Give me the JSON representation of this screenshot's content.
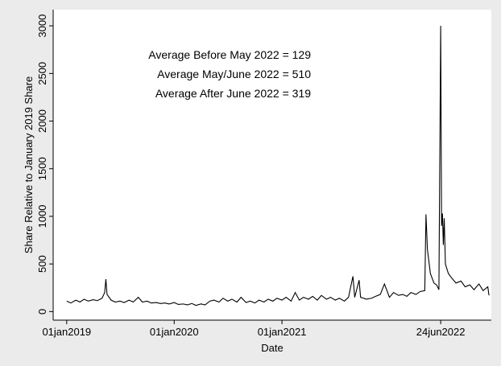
{
  "chart_data": {
    "type": "line",
    "xlabel": "Date",
    "ylabel": "Share Relative to January 2019 Share",
    "annotations": [
      "Average Before May 2022 = 129",
      "Average May/June 2022 = 510",
      "Average After June 2022 = 319"
    ],
    "xlim": [
      "2018-11-16",
      "2022-12-13"
    ],
    "xticks": [
      {
        "value": "2019-01-01",
        "label": "01jan2019"
      },
      {
        "value": "2020-01-01",
        "label": "01jan2020"
      },
      {
        "value": "2021-01-01",
        "label": "01jan2021"
      },
      {
        "value": "2022-06-24",
        "label": "24jun2022"
      }
    ],
    "ylim": [
      -90,
      3170
    ],
    "yticks": [
      0,
      500,
      1000,
      1500,
      2000,
      2500,
      3000
    ],
    "x": [
      "2019-01-01",
      "2019-01-15",
      "2019-02-01",
      "2019-02-15",
      "2019-03-01",
      "2019-03-15",
      "2019-04-01",
      "2019-04-15",
      "2019-05-01",
      "2019-05-10",
      "2019-05-14",
      "2019-05-18",
      "2019-06-01",
      "2019-06-15",
      "2019-07-01",
      "2019-07-15",
      "2019-08-01",
      "2019-08-15",
      "2019-09-01",
      "2019-09-15",
      "2019-10-01",
      "2019-10-15",
      "2019-11-01",
      "2019-11-15",
      "2019-12-01",
      "2019-12-15",
      "2020-01-01",
      "2020-01-15",
      "2020-02-01",
      "2020-02-15",
      "2020-03-01",
      "2020-03-15",
      "2020-04-01",
      "2020-04-15",
      "2020-05-01",
      "2020-05-15",
      "2020-06-01",
      "2020-06-15",
      "2020-07-01",
      "2020-07-15",
      "2020-08-01",
      "2020-08-15",
      "2020-09-01",
      "2020-09-15",
      "2020-10-01",
      "2020-10-15",
      "2020-11-01",
      "2020-11-15",
      "2020-12-01",
      "2020-12-15",
      "2021-01-01",
      "2021-01-15",
      "2021-02-01",
      "2021-02-15",
      "2021-03-01",
      "2021-03-15",
      "2021-04-01",
      "2021-04-15",
      "2021-05-01",
      "2021-05-15",
      "2021-06-01",
      "2021-06-15",
      "2021-07-01",
      "2021-07-15",
      "2021-08-01",
      "2021-08-15",
      "2021-08-30",
      "2021-09-05",
      "2021-09-20",
      "2021-09-25",
      "2021-10-15",
      "2021-11-01",
      "2021-11-15",
      "2021-12-01",
      "2021-12-15",
      "2022-01-01",
      "2022-01-15",
      "2022-02-01",
      "2022-02-15",
      "2022-03-01",
      "2022-03-15",
      "2022-04-01",
      "2022-04-15",
      "2022-05-01",
      "2022-05-05",
      "2022-05-10",
      "2022-05-20",
      "2022-06-01",
      "2022-06-10",
      "2022-06-18",
      "2022-06-24",
      "2022-06-27",
      "2022-06-30",
      "2022-07-03",
      "2022-07-06",
      "2022-07-10",
      "2022-07-20",
      "2022-08-01",
      "2022-08-15",
      "2022-09-01",
      "2022-09-15",
      "2022-10-01",
      "2022-10-15",
      "2022-11-01",
      "2022-11-15",
      "2022-12-01",
      "2022-12-05"
    ],
    "series": [
      {
        "color": "#000000",
        "values": [
          110,
          90,
          120,
          100,
          130,
          110,
          125,
          115,
          140,
          200,
          340,
          180,
          120,
          100,
          110,
          95,
          120,
          100,
          150,
          100,
          110,
          90,
          95,
          85,
          90,
          80,
          95,
          75,
          80,
          70,
          85,
          65,
          80,
          70,
          110,
          120,
          100,
          140,
          110,
          130,
          100,
          150,
          95,
          110,
          90,
          120,
          100,
          130,
          110,
          140,
          120,
          150,
          110,
          200,
          120,
          150,
          130,
          160,
          120,
          170,
          130,
          150,
          120,
          140,
          110,
          150,
          370,
          150,
          330,
          150,
          130,
          140,
          160,
          180,
          290,
          150,
          200,
          170,
          180,
          160,
          200,
          180,
          210,
          220,
          1020,
          650,
          400,
          300,
          280,
          230,
          3000,
          900,
          1030,
          700,
          980,
          500,
          400,
          350,
          300,
          320,
          260,
          280,
          230,
          290,
          220,
          260,
          170
        ]
      }
    ]
  }
}
